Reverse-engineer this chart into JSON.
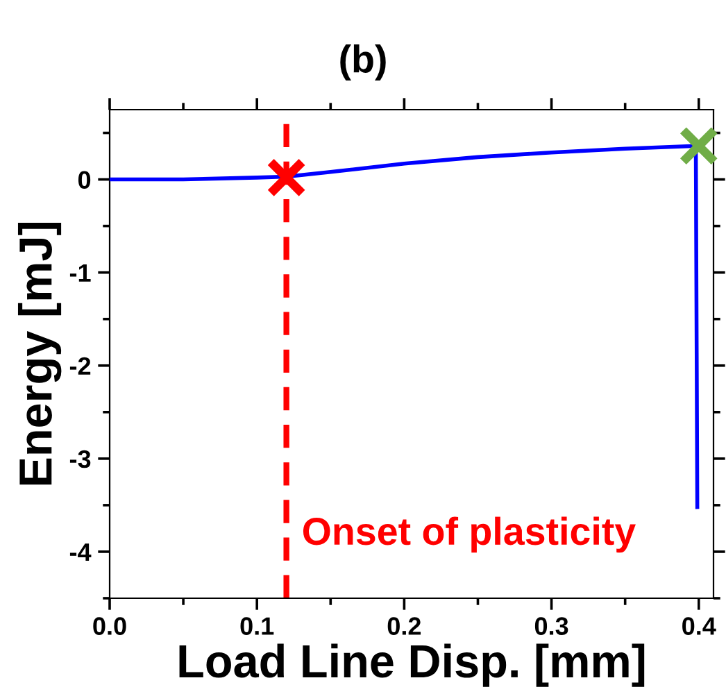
{
  "chart_data": {
    "type": "line",
    "title": "(b)",
    "xlabel": "Load Line Disp. [mm]",
    "ylabel": "Energy [mJ]",
    "xlim": [
      0,
      0.41
    ],
    "ylim": [
      -4.5,
      0.75
    ],
    "xticks": [
      {
        "value": 0,
        "label": "0.0"
      },
      0.1,
      0.2,
      0.3,
      0.4
    ],
    "yticks": [
      -4,
      -3,
      -2,
      -1,
      0
    ],
    "grid": false,
    "legend": false,
    "series": [
      {
        "color": "#0000ff",
        "marker": "none",
        "x": [
          0,
          0.05,
          0.1,
          0.12,
          0.15,
          0.2,
          0.25,
          0.3,
          0.35,
          0.398,
          0.399
        ],
        "values": [
          0,
          0,
          0.02,
          0.03,
          0.08,
          0.17,
          0.24,
          0.29,
          0.33,
          0.36,
          -3.52
        ]
      },
      {
        "type": "scatter",
        "color": "#ff0000",
        "marker": "cross",
        "x": [
          0.12
        ],
        "values": [
          0.02
        ]
      },
      {
        "type": "scatter",
        "color": "#70ad47",
        "marker": "cross",
        "x": [
          0.4
        ],
        "values": [
          0.36
        ]
      }
    ],
    "ref_lines": [
      {
        "axis": "x",
        "value": 0.12,
        "color": "#ff0000",
        "line_style": "dashed"
      }
    ],
    "annotations": [
      "Onset of plasticity"
    ]
  }
}
